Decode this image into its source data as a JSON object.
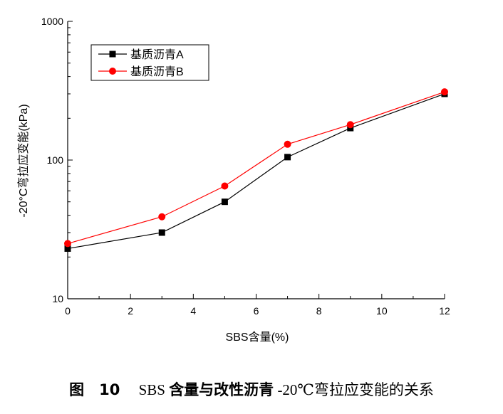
{
  "chart_data": {
    "type": "line",
    "xlabel": "SBS含量(%)",
    "ylabel": "-20°C弯拉应变能(kPa)",
    "xlim": [
      0,
      12
    ],
    "ylim": [
      10,
      1000
    ],
    "yscale": "log",
    "x_ticks": [
      0,
      2,
      4,
      6,
      8,
      10,
      12
    ],
    "y_ticks": [
      10,
      100,
      1000
    ],
    "grid": false,
    "legend_position": "top-left",
    "series": [
      {
        "name": "基质沥青A",
        "color": "#000000",
        "marker": "square",
        "x": [
          0,
          3,
          5,
          7,
          9,
          12
        ],
        "y": [
          23,
          30,
          50,
          105,
          170,
          300
        ]
      },
      {
        "name": "基质沥青B",
        "color": "#ff0000",
        "marker": "circle",
        "x": [
          0,
          3,
          5,
          7,
          9,
          12
        ],
        "y": [
          25,
          39,
          65,
          130,
          180,
          310
        ]
      }
    ]
  },
  "caption": {
    "fig_label": "图",
    "fig_number": "10",
    "text_prefix": "SBS ",
    "text_main": "含量与改性沥青",
    "text_suffix": "-20℃弯拉应变能的关系"
  }
}
